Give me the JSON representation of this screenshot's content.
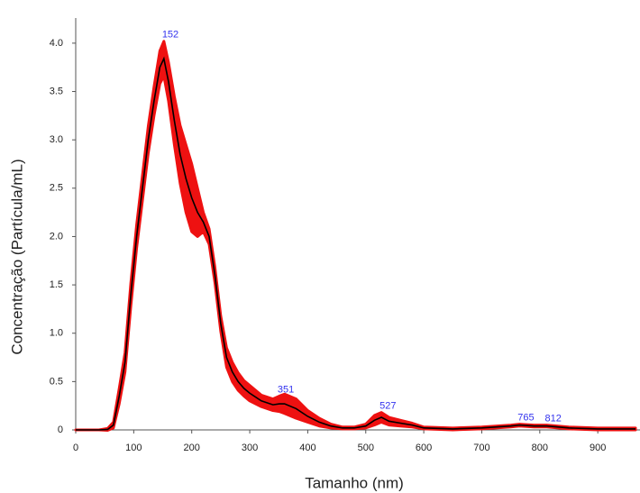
{
  "chart_data": {
    "type": "line",
    "x_label": "Tamanho (nm)",
    "y_label": "Concentração (Partícula/mL)",
    "x": [
      0,
      40,
      55,
      65,
      75,
      85,
      95,
      105,
      115,
      125,
      135,
      145,
      152,
      160,
      170,
      180,
      190,
      200,
      210,
      220,
      230,
      240,
      250,
      260,
      270,
      280,
      290,
      300,
      320,
      340,
      351,
      360,
      380,
      400,
      420,
      440,
      460,
      480,
      500,
      515,
      527,
      540,
      560,
      580,
      600,
      650,
      700,
      750,
      765,
      790,
      812,
      850,
      900,
      965
    ],
    "series": [
      {
        "color": "#000000",
        "error_color": "#ee1111",
        "values": [
          0,
          0,
          0.005,
          0.05,
          0.35,
          0.7,
          1.4,
          2.0,
          2.5,
          3.0,
          3.4,
          3.75,
          3.84,
          3.6,
          3.2,
          2.85,
          2.6,
          2.4,
          2.25,
          2.15,
          2.0,
          1.6,
          1.1,
          0.75,
          0.6,
          0.5,
          0.43,
          0.38,
          0.3,
          0.26,
          0.27,
          0.27,
          0.22,
          0.14,
          0.08,
          0.04,
          0.02,
          0.02,
          0.04,
          0.1,
          0.13,
          0.09,
          0.07,
          0.05,
          0.02,
          0.01,
          0.02,
          0.04,
          0.05,
          0.04,
          0.04,
          0.02,
          0.01,
          0.01
        ],
        "errors": [
          0,
          0,
          0.01,
          0.03,
          0.08,
          0.1,
          0.12,
          0.12,
          0.13,
          0.14,
          0.15,
          0.17,
          0.18,
          0.2,
          0.25,
          0.3,
          0.35,
          0.35,
          0.25,
          0.1,
          0.08,
          0.08,
          0.08,
          0.1,
          0.1,
          0.09,
          0.08,
          0.08,
          0.06,
          0.06,
          0.08,
          0.1,
          0.1,
          0.06,
          0.04,
          0.02,
          0.01,
          0.01,
          0.02,
          0.05,
          0.05,
          0.04,
          0.03,
          0.02,
          0.01,
          0.01,
          0.01,
          0.01,
          0.01,
          0.01,
          0.01,
          0.01,
          0.01,
          0.01
        ]
      }
    ],
    "peak_labels": [
      152,
      351,
      527,
      765,
      812
    ],
    "peak_label_color": "#3333ee",
    "xlim": [
      0,
      965
    ],
    "ylim": [
      0,
      4.26
    ],
    "xticks": [
      0,
      100,
      200,
      300,
      400,
      500,
      600,
      700,
      800,
      900
    ],
    "yticks": [
      0,
      0.5,
      {
        "value": 1,
        "label": "1.0"
      },
      1.5,
      {
        "value": 2,
        "label": "2.0"
      },
      2.5,
      {
        "value": 3,
        "label": "3.0"
      },
      3.5,
      {
        "value": 4,
        "label": "4.0"
      }
    ]
  }
}
